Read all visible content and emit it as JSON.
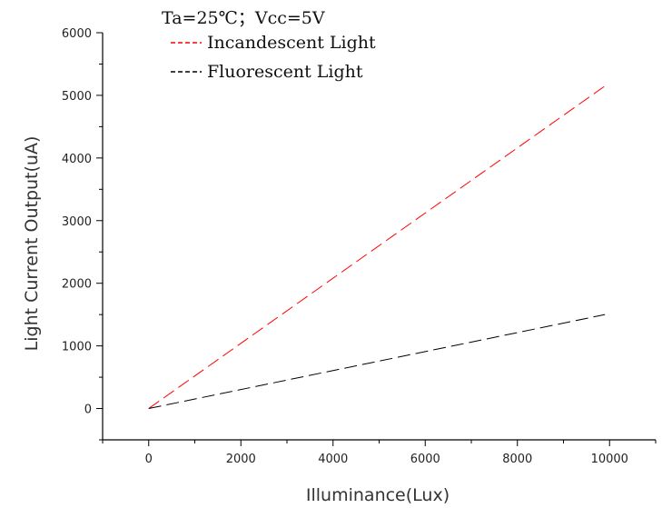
{
  "chart_data": {
    "type": "line",
    "title": "",
    "annotation": "Ta=25℃；Vcc=5V",
    "xlabel": "Illuminance(Lux)",
    "ylabel": "Light Current Output(uA)",
    "xlim": [
      -1000,
      11000
    ],
    "ylim": [
      -500,
      6000
    ],
    "xticks": [
      0,
      2000,
      4000,
      6000,
      8000,
      10000
    ],
    "yticks": [
      0,
      1000,
      2000,
      3000,
      4000,
      5000,
      6000
    ],
    "grid": false,
    "legend_position": "top-left",
    "series": [
      {
        "name": "Incandescent Light",
        "color": "#ff0000",
        "dash": "dashed",
        "x": [
          0,
          9900
        ],
        "y": [
          0,
          5150
        ]
      },
      {
        "name": "Fluorescent Light",
        "color": "#000000",
        "dash": "dashed",
        "x": [
          0,
          9900
        ],
        "y": [
          0,
          1500
        ]
      }
    ]
  }
}
